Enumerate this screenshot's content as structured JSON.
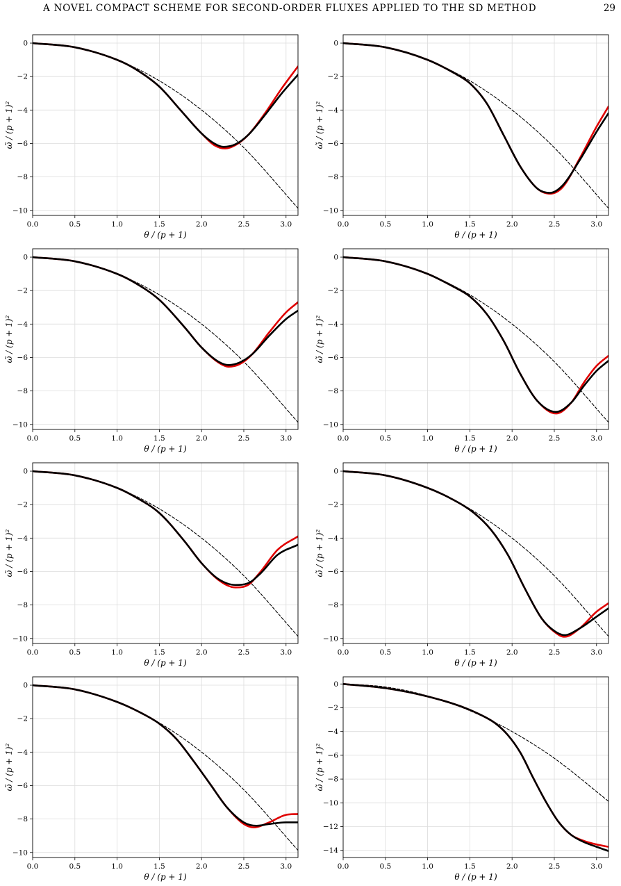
{
  "header": {
    "title": "A NOVEL COMPACT SCHEME FOR SECOND-ORDER FLUXES APPLIED TO THE SD METHOD",
    "page_number": "29"
  },
  "colors": {
    "exact": "#000000",
    "series_red": "#e00000",
    "series_black": "#000000",
    "grid": "#dcdcdc"
  },
  "chart_data": [
    {
      "type": "line",
      "xlabel": "θ / (p + 1)",
      "ylabel": "ω̃ / (p + 1)²",
      "xlim": [
        0,
        3.1416
      ],
      "ylim": [
        -10.3,
        0.5
      ],
      "xticks": [
        "0.0",
        "0.5",
        "1.0",
        "1.5",
        "2.0",
        "2.5",
        "3.0"
      ],
      "yticks": [
        "0",
        "−2",
        "−4",
        "−6",
        "−8",
        "−10"
      ],
      "grid": true,
      "series": [
        {
          "style": "dashed",
          "color": "#000000",
          "x": [
            0,
            0.5,
            1.0,
            1.5,
            2.0,
            2.5,
            3.1416
          ],
          "y": [
            0,
            -0.25,
            -1.0,
            -2.25,
            -4.0,
            -6.25,
            -9.87
          ]
        },
        {
          "style": "solid",
          "color": "#e00000",
          "x": [
            0,
            0.5,
            1.0,
            1.2,
            1.5,
            1.75,
            2.0,
            2.15,
            2.28,
            2.4,
            2.55,
            2.75,
            2.95,
            3.14
          ],
          "y": [
            0,
            -0.25,
            -1.0,
            -1.5,
            -2.6,
            -4.0,
            -5.4,
            -6.1,
            -6.3,
            -6.1,
            -5.5,
            -4.2,
            -2.7,
            -1.4
          ]
        },
        {
          "style": "solid",
          "color": "#000000",
          "x": [
            0,
            0.5,
            1.0,
            1.2,
            1.5,
            1.75,
            2.0,
            2.15,
            2.26,
            2.4,
            2.55,
            2.75,
            2.95,
            3.14
          ],
          "y": [
            0,
            -0.25,
            -1.0,
            -1.5,
            -2.6,
            -4.0,
            -5.4,
            -6.0,
            -6.2,
            -6.05,
            -5.5,
            -4.3,
            -3.0,
            -1.9
          ]
        }
      ]
    },
    {
      "type": "line",
      "xlabel": "θ / (p + 1)",
      "ylabel": "ω̃ / (p + 1)²",
      "xlim": [
        0,
        3.1416
      ],
      "ylim": [
        -10.3,
        0.5
      ],
      "xticks": [
        "0.0",
        "0.5",
        "1.0",
        "1.5",
        "2.0",
        "2.5",
        "3.0"
      ],
      "yticks": [
        "0",
        "−2",
        "−4",
        "−6",
        "−8",
        "−10"
      ],
      "grid": true,
      "series": [
        {
          "style": "dashed",
          "color": "#000000",
          "x": [
            0,
            0.5,
            1.0,
            1.5,
            2.0,
            2.5,
            3.1416
          ],
          "y": [
            0,
            -0.25,
            -1.0,
            -2.25,
            -4.0,
            -6.25,
            -9.87
          ]
        },
        {
          "style": "solid",
          "color": "#e00000",
          "x": [
            0,
            0.5,
            1.0,
            1.3,
            1.5,
            1.7,
            1.9,
            2.1,
            2.3,
            2.45,
            2.6,
            2.8,
            3.0,
            3.14
          ],
          "y": [
            0,
            -0.25,
            -1.0,
            -1.75,
            -2.4,
            -3.6,
            -5.5,
            -7.4,
            -8.7,
            -9.0,
            -8.6,
            -6.9,
            -5.0,
            -3.8
          ]
        },
        {
          "style": "solid",
          "color": "#000000",
          "x": [
            0,
            0.5,
            1.0,
            1.3,
            1.5,
            1.7,
            1.9,
            2.1,
            2.3,
            2.45,
            2.6,
            2.8,
            3.0,
            3.14
          ],
          "y": [
            0,
            -0.25,
            -1.0,
            -1.75,
            -2.4,
            -3.6,
            -5.5,
            -7.4,
            -8.7,
            -8.95,
            -8.5,
            -7.0,
            -5.3,
            -4.2
          ]
        }
      ]
    },
    {
      "type": "line",
      "xlabel": "θ / (p + 1)",
      "ylabel": "ω̃ / (p + 1)²",
      "xlim": [
        0,
        3.1416
      ],
      "ylim": [
        -10.3,
        0.5
      ],
      "xticks": [
        "0.0",
        "0.5",
        "1.0",
        "1.5",
        "2.0",
        "2.5",
        "3.0"
      ],
      "yticks": [
        "0",
        "−2",
        "−4",
        "−6",
        "−8",
        "−10"
      ],
      "grid": true,
      "series": [
        {
          "style": "dashed",
          "color": "#000000",
          "x": [
            0,
            0.5,
            1.0,
            1.5,
            2.0,
            2.5,
            3.1416
          ],
          "y": [
            0,
            -0.25,
            -1.0,
            -2.25,
            -4.0,
            -6.25,
            -9.87
          ]
        },
        {
          "style": "solid",
          "color": "#e00000",
          "x": [
            0,
            0.5,
            1.0,
            1.2,
            1.5,
            1.8,
            2.0,
            2.2,
            2.32,
            2.45,
            2.6,
            2.8,
            3.0,
            3.14
          ],
          "y": [
            0,
            -0.25,
            -1.0,
            -1.5,
            -2.55,
            -4.2,
            -5.4,
            -6.3,
            -6.55,
            -6.4,
            -5.8,
            -4.5,
            -3.3,
            -2.7
          ]
        },
        {
          "style": "solid",
          "color": "#000000",
          "x": [
            0,
            0.5,
            1.0,
            1.2,
            1.5,
            1.8,
            2.0,
            2.2,
            2.32,
            2.45,
            2.6,
            2.8,
            3.0,
            3.14
          ],
          "y": [
            0,
            -0.25,
            -1.0,
            -1.5,
            -2.55,
            -4.2,
            -5.4,
            -6.25,
            -6.45,
            -6.3,
            -5.8,
            -4.7,
            -3.7,
            -3.2
          ]
        }
      ]
    },
    {
      "type": "line",
      "xlabel": "θ / (p + 1)",
      "ylabel": "ω̃ / (p + 1)²",
      "xlim": [
        0,
        3.1416
      ],
      "ylim": [
        -10.3,
        0.5
      ],
      "xticks": [
        "0.0",
        "0.5",
        "1.0",
        "1.5",
        "2.0",
        "2.5",
        "3.0"
      ],
      "yticks": [
        "0",
        "−2",
        "−4",
        "−6",
        "−8",
        "−10"
      ],
      "grid": true,
      "series": [
        {
          "style": "dashed",
          "color": "#000000",
          "x": [
            0,
            0.5,
            1.0,
            1.5,
            2.0,
            2.5,
            3.1416
          ],
          "y": [
            0,
            -0.25,
            -1.0,
            -2.25,
            -4.0,
            -6.25,
            -9.87
          ]
        },
        {
          "style": "solid",
          "color": "#e00000",
          "x": [
            0,
            0.5,
            1.0,
            1.3,
            1.5,
            1.7,
            1.9,
            2.1,
            2.3,
            2.52,
            2.7,
            2.85,
            3.0,
            3.14
          ],
          "y": [
            0,
            -0.25,
            -1.0,
            -1.75,
            -2.35,
            -3.4,
            -5.0,
            -7.0,
            -8.6,
            -9.35,
            -8.7,
            -7.5,
            -6.5,
            -5.9
          ]
        },
        {
          "style": "solid",
          "color": "#000000",
          "x": [
            0,
            0.5,
            1.0,
            1.3,
            1.5,
            1.7,
            1.9,
            2.1,
            2.3,
            2.52,
            2.7,
            2.85,
            3.0,
            3.14
          ],
          "y": [
            0,
            -0.25,
            -1.0,
            -1.75,
            -2.35,
            -3.4,
            -5.0,
            -7.0,
            -8.6,
            -9.25,
            -8.7,
            -7.7,
            -6.8,
            -6.2
          ]
        }
      ]
    },
    {
      "type": "line",
      "xlabel": "θ / (p + 1)",
      "ylabel": "ω̃ / (p + 1)²",
      "xlim": [
        0,
        3.1416
      ],
      "ylim": [
        -10.3,
        0.5
      ],
      "xticks": [
        "0.0",
        "0.5",
        "1.0",
        "1.5",
        "2.0",
        "2.5",
        "3.0"
      ],
      "yticks": [
        "0",
        "−2",
        "−4",
        "−6",
        "−8",
        "−10"
      ],
      "grid": true,
      "series": [
        {
          "style": "dashed",
          "color": "#000000",
          "x": [
            0,
            0.5,
            1.0,
            1.5,
            2.0,
            2.5,
            3.1416
          ],
          "y": [
            0,
            -0.25,
            -1.0,
            -2.25,
            -4.0,
            -6.25,
            -9.87
          ]
        },
        {
          "style": "solid",
          "color": "#e00000",
          "x": [
            0,
            0.5,
            1.0,
            1.2,
            1.5,
            1.8,
            2.0,
            2.2,
            2.4,
            2.55,
            2.7,
            2.9,
            3.14
          ],
          "y": [
            0,
            -0.25,
            -1.0,
            -1.5,
            -2.5,
            -4.2,
            -5.5,
            -6.5,
            -6.95,
            -6.8,
            -6.0,
            -4.7,
            -3.9
          ]
        },
        {
          "style": "solid",
          "color": "#000000",
          "x": [
            0,
            0.5,
            1.0,
            1.2,
            1.5,
            1.8,
            2.0,
            2.2,
            2.4,
            2.55,
            2.7,
            2.9,
            3.14
          ],
          "y": [
            0,
            -0.25,
            -1.0,
            -1.5,
            -2.5,
            -4.2,
            -5.5,
            -6.45,
            -6.8,
            -6.7,
            -6.1,
            -5.0,
            -4.4
          ]
        }
      ]
    },
    {
      "type": "line",
      "xlabel": "θ / (p + 1)",
      "ylabel": "ω̃ / (p + 1)²",
      "xlim": [
        0,
        3.1416
      ],
      "ylim": [
        -10.3,
        0.5
      ],
      "xticks": [
        "0.0",
        "0.5",
        "1.0",
        "1.5",
        "2.0",
        "2.5",
        "3.0"
      ],
      "yticks": [
        "0",
        "−2",
        "−4",
        "−6",
        "−8",
        "−10"
      ],
      "grid": true,
      "series": [
        {
          "style": "dashed",
          "color": "#000000",
          "x": [
            0,
            0.5,
            1.0,
            1.5,
            2.0,
            2.5,
            3.1416
          ],
          "y": [
            0,
            -0.25,
            -1.0,
            -2.25,
            -4.0,
            -6.25,
            -9.87
          ]
        },
        {
          "style": "solid",
          "color": "#e00000",
          "x": [
            0,
            0.5,
            1.0,
            1.3,
            1.55,
            1.75,
            1.95,
            2.15,
            2.35,
            2.5,
            2.62,
            2.8,
            3.0,
            3.14
          ],
          "y": [
            0,
            -0.25,
            -1.0,
            -1.7,
            -2.5,
            -3.5,
            -5.0,
            -7.0,
            -8.8,
            -9.6,
            -9.9,
            -9.4,
            -8.4,
            -7.9
          ]
        },
        {
          "style": "solid",
          "color": "#000000",
          "x": [
            0,
            0.5,
            1.0,
            1.3,
            1.55,
            1.75,
            1.95,
            2.15,
            2.35,
            2.5,
            2.62,
            2.8,
            3.0,
            3.14
          ],
          "y": [
            0,
            -0.25,
            -1.0,
            -1.7,
            -2.5,
            -3.5,
            -5.0,
            -7.0,
            -8.8,
            -9.55,
            -9.8,
            -9.4,
            -8.7,
            -8.2
          ]
        }
      ]
    },
    {
      "type": "line",
      "xlabel": "θ / (p + 1)",
      "ylabel": "ω̃ / (p + 1)²",
      "xlim": [
        0,
        3.1416
      ],
      "ylim": [
        -10.3,
        0.5
      ],
      "xticks": [
        "0.0",
        "0.5",
        "1.0",
        "1.5",
        "2.0",
        "2.5",
        "3.0"
      ],
      "yticks": [
        "0",
        "−2",
        "−4",
        "−6",
        "−8",
        "−10"
      ],
      "grid": true,
      "series": [
        {
          "style": "dashed",
          "color": "#000000",
          "x": [
            0,
            0.5,
            1.0,
            1.5,
            2.0,
            2.5,
            3.1416
          ],
          "y": [
            0,
            -0.25,
            -1.0,
            -2.25,
            -4.0,
            -6.25,
            -9.87
          ]
        },
        {
          "style": "solid",
          "color": "#e00000",
          "x": [
            0,
            0.5,
            1.0,
            1.3,
            1.5,
            1.7,
            1.9,
            2.1,
            2.3,
            2.5,
            2.62,
            2.8,
            3.0,
            3.14
          ],
          "y": [
            0,
            -0.25,
            -1.0,
            -1.7,
            -2.3,
            -3.2,
            -4.5,
            -5.9,
            -7.3,
            -8.3,
            -8.5,
            -8.2,
            -7.75,
            -7.7
          ]
        },
        {
          "style": "solid",
          "color": "#000000",
          "x": [
            0,
            0.5,
            1.0,
            1.3,
            1.5,
            1.7,
            1.9,
            2.1,
            2.3,
            2.5,
            2.65,
            2.8,
            3.0,
            3.14
          ],
          "y": [
            0,
            -0.25,
            -1.0,
            -1.7,
            -2.3,
            -3.2,
            -4.5,
            -5.9,
            -7.3,
            -8.2,
            -8.4,
            -8.3,
            -8.2,
            -8.2
          ]
        }
      ]
    },
    {
      "type": "line",
      "xlabel": "θ / (p + 1)",
      "ylabel": "ω̃ / (p + 1)²",
      "xlim": [
        0,
        3.1416
      ],
      "ylim": [
        -14.6,
        0.6
      ],
      "xticks": [
        "0.0",
        "0.5",
        "1.0",
        "1.5",
        "2.0",
        "2.5",
        "3.0"
      ],
      "yticks": [
        "0",
        "−2",
        "−4",
        "−6",
        "−8",
        "−10",
        "−12",
        "−14"
      ],
      "grid": true,
      "series": [
        {
          "style": "dashed",
          "color": "#000000",
          "x": [
            0,
            0.5,
            1.0,
            1.5,
            2.0,
            2.5,
            3.1416
          ],
          "y": [
            0,
            -0.25,
            -1.0,
            -2.25,
            -4.0,
            -6.25,
            -9.87
          ]
        },
        {
          "style": "solid",
          "color": "#e00000",
          "x": [
            0,
            0.5,
            1.0,
            1.4,
            1.6,
            1.8,
            1.95,
            2.1,
            2.25,
            2.4,
            2.55,
            2.7,
            2.85,
            3.0,
            3.14
          ],
          "y": [
            0,
            -0.35,
            -1.05,
            -1.9,
            -2.5,
            -3.3,
            -4.3,
            -5.8,
            -7.9,
            -9.9,
            -11.6,
            -12.7,
            -13.2,
            -13.5,
            -13.7
          ]
        },
        {
          "style": "solid",
          "color": "#000000",
          "x": [
            0,
            0.5,
            1.0,
            1.4,
            1.6,
            1.8,
            1.95,
            2.1,
            2.25,
            2.4,
            2.55,
            2.7,
            2.85,
            3.0,
            3.14
          ],
          "y": [
            0,
            -0.35,
            -1.05,
            -1.9,
            -2.5,
            -3.3,
            -4.3,
            -5.8,
            -7.9,
            -9.9,
            -11.6,
            -12.7,
            -13.3,
            -13.7,
            -14.05
          ]
        }
      ]
    }
  ]
}
